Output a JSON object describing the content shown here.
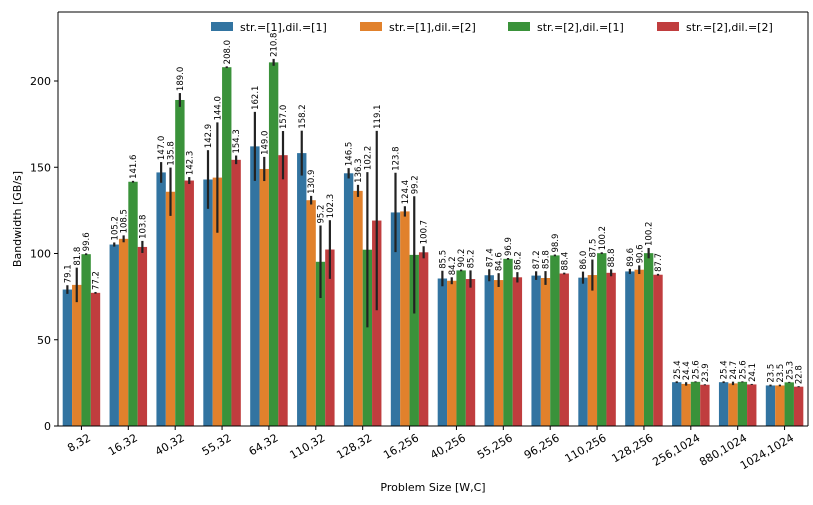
{
  "chart_data": {
    "type": "bar",
    "xlabel": "Problem Size [W,C]",
    "ylabel": "Bandwidth [GB/s]",
    "ylim": [
      0,
      240
    ],
    "yticks": [
      0,
      50,
      100,
      150,
      200
    ],
    "legend_position": "top",
    "categories": [
      "8,32",
      "16,32",
      "40,32",
      "55,32",
      "64,32",
      "110,32",
      "128,32",
      "16,256",
      "40,256",
      "55,256",
      "96,256",
      "110,256",
      "128,256",
      "256,1024",
      "880,1024",
      "1024,1024"
    ],
    "series": [
      {
        "name": "str.=[1],dil.=[1]",
        "color": "#3274a1",
        "values": [
          79.1,
          105.2,
          147.0,
          142.9,
          162.1,
          158.2,
          146.5,
          123.8,
          85.5,
          87.4,
          87.2,
          86.0,
          89.6,
          25.4,
          25.4,
          23.5
        ],
        "labels": [
          "79.1",
          "105.2",
          "147.0",
          "142.9",
          "162.1",
          "158.2",
          "146.5",
          "123.8",
          "85.5",
          "87.4",
          "87.2",
          "86.0",
          "89.6",
          "25.4",
          "25.4",
          "23.5"
        ],
        "err": [
          2.5,
          1.2,
          6,
          17,
          20,
          13,
          3,
          23,
          4.5,
          3.5,
          2.5,
          3.5,
          1.5,
          0.5,
          0.5,
          0.5
        ]
      },
      {
        "name": "str.=[1],dil.=[2]",
        "color": "#e1812c",
        "values": [
          81.8,
          108.5,
          135.8,
          144.0,
          149.0,
          130.9,
          136.3,
          124.4,
          84.2,
          84.6,
          85.8,
          87.5,
          90.6,
          24.4,
          24.7,
          23.5
        ],
        "labels": [
          "81.8",
          "108.5",
          "135.8",
          "144.0",
          "149.0",
          "130.9",
          "136.3",
          "124.4",
          "84.2",
          "84.6",
          "85.8",
          "87.5",
          "90.6",
          "24.4",
          "24.7",
          "23.5"
        ],
        "err": [
          10,
          2,
          14,
          32,
          7,
          2.5,
          3.5,
          3,
          2,
          4,
          4,
          9,
          2.5,
          1,
          1,
          0.5
        ]
      },
      {
        "name": "str.=[2],dil.=[1]",
        "color": "#3a923a",
        "values": [
          99.6,
          141.6,
          189.0,
          208.0,
          210.8,
          95.2,
          102.2,
          99.2,
          90.2,
          96.9,
          98.9,
          100.2,
          100.2,
          25.6,
          25.6,
          25.3
        ],
        "labels": [
          "99.6",
          "141.6",
          "189.0",
          "208.0",
          "210.8",
          "95.2",
          "102.2",
          "99.2",
          "90.2",
          "96.9",
          "98.9",
          "100.2",
          "100.2",
          "25.6",
          "25.6",
          "25.3"
        ],
        "err": [
          0.5,
          0.5,
          4,
          0.5,
          2,
          21,
          45,
          34,
          0.5,
          0.5,
          0.5,
          0.5,
          3,
          0.3,
          0.3,
          0.3
        ]
      },
      {
        "name": "str.=[2],dil.=[2]",
        "color": "#c03d3e",
        "values": [
          77.2,
          103.8,
          142.3,
          154.3,
          157.0,
          102.3,
          119.1,
          100.7,
          85.2,
          86.2,
          88.4,
          88.8,
          87.7,
          23.9,
          24.1,
          22.8
        ],
        "labels": [
          "77.2",
          "103.8",
          "142.3",
          "154.3",
          "157.0",
          "102.3",
          "119.1",
          "100.7",
          "85.2",
          "86.2",
          "88.4",
          "88.8",
          "87.7",
          "23.9",
          "24.1",
          "22.8"
        ],
        "err": [
          0.5,
          3.5,
          2,
          2.5,
          14,
          17,
          52,
          3.5,
          5,
          3,
          0.5,
          2,
          0.5,
          0.3,
          0.3,
          0.3
        ]
      }
    ]
  }
}
